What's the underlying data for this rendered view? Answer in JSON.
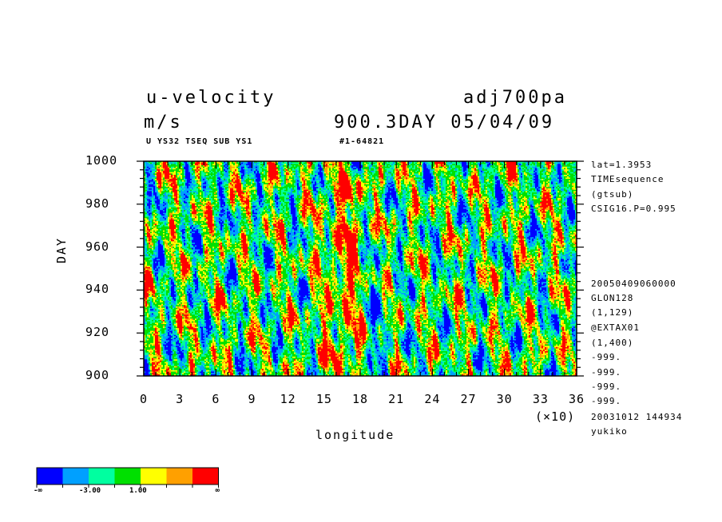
{
  "header": {
    "variable": "u-velocity",
    "experiment": "adj700pa",
    "unit": "m/s",
    "time_label": "900.3DAY 05/04/09",
    "subtitle_left": "U YS32 TSEQ SUB YS1",
    "subtitle_right": "#1-64821"
  },
  "info_right": [
    "lat=1.3953",
    "TIMEsequence",
    "(gtsub)",
    "CSIG16.P=0.995",
    "20050409060000",
    "GLON128",
    "(1,129)",
    "@EXTAX01",
    "(1,400)",
    "-999.",
    "-999.",
    "-999.",
    "-999.",
    "20031012 144934",
    "yukiko"
  ],
  "colorbar": {
    "colors": [
      "#0000ff",
      "#00a0ff",
      "#00ffa0",
      "#00e000",
      "#ffff00",
      "#ffa000",
      "#ff0000"
    ],
    "labels": [
      "-∞",
      "-3.00",
      "1.00",
      "∞"
    ]
  },
  "chart_data": {
    "type": "heatmap",
    "title": "u-velocity",
    "xlabel": "longitude",
    "ylabel": "DAY",
    "x_multiplier_label": "(×10)",
    "xlim": [
      0,
      36
    ],
    "ylim": [
      900,
      1000
    ],
    "x_ticks": [
      0,
      3,
      6,
      9,
      12,
      15,
      18,
      21,
      24,
      27,
      30,
      33,
      36
    ],
    "y_ticks": [
      900,
      920,
      940,
      960,
      980,
      1000
    ],
    "levels": [
      -3.0,
      1.0
    ],
    "note": "Hovmoller diagram of u-velocity (m/s); red streaks concentrated near longitude 170-180 (x10 scale 17-18)"
  }
}
